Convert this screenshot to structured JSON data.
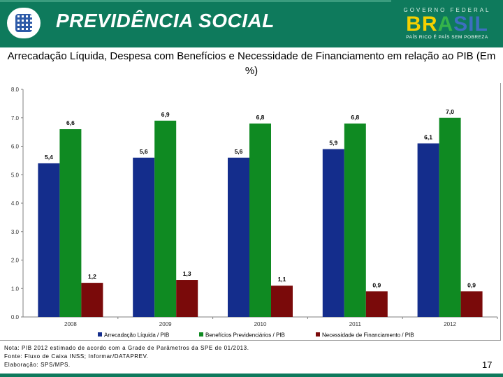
{
  "header": {
    "brand": "PREVIDÊNCIA SOCIAL",
    "gov_label": "GOVERNO FEDERAL",
    "country_part1": "BR",
    "country_part2": "A",
    "country_part3": "SIL",
    "slogan": "PAÍS RICO É PAÍS SEM POBREZA",
    "colors": {
      "bar": "#0e7a5c"
    }
  },
  "title": "Arrecadação Líquida, Despesa com Benefícios e Necessidade de Financiamento em relação ao PIB (Em %)",
  "chart_data": {
    "type": "bar",
    "categories": [
      "2008",
      "2009",
      "2010",
      "2011",
      "2012"
    ],
    "series": [
      {
        "name": "Arrecadação Líquida / PIB",
        "color": "#142d8c",
        "values": [
          5.4,
          5.6,
          5.6,
          5.9,
          6.1
        ],
        "labels": [
          "5,4",
          "5,6",
          "5,6",
          "5,9",
          "6,1"
        ]
      },
      {
        "name": "Benefícios Previdenciários / PIB",
        "color": "#0f8a22",
        "values": [
          6.6,
          6.9,
          6.8,
          6.8,
          7.0
        ],
        "labels": [
          "6,6",
          "6,9",
          "6,8",
          "6,8",
          "7,0"
        ]
      },
      {
        "name": "Necessidade de Financiamento / PIB",
        "color": "#7a0a0a",
        "values": [
          1.2,
          1.3,
          1.1,
          0.9,
          0.9
        ],
        "labels": [
          "1,2",
          "1,3",
          "1,1",
          "0,9",
          "0,9"
        ]
      }
    ],
    "ylim": [
      0,
      8
    ],
    "yticks": [
      0,
      1,
      2,
      3,
      4,
      5,
      6,
      7,
      8
    ],
    "ytick_labels": [
      "0.0",
      "1.0",
      "2.0",
      "3.0",
      "4.0",
      "5.0",
      "6.0",
      "7.0",
      "8.0"
    ],
    "legend_position": "bottom",
    "grid": false
  },
  "notes": [
    "Nota: PIB 2012 estimado de acordo com a Grade de Parâmetros da SPE de 01/2013.",
    "Fonte: Fluxo de Caixa INSS; Informar/DATAPREV.",
    "Elaboração: SPS/MPS."
  ],
  "page_number": "17"
}
